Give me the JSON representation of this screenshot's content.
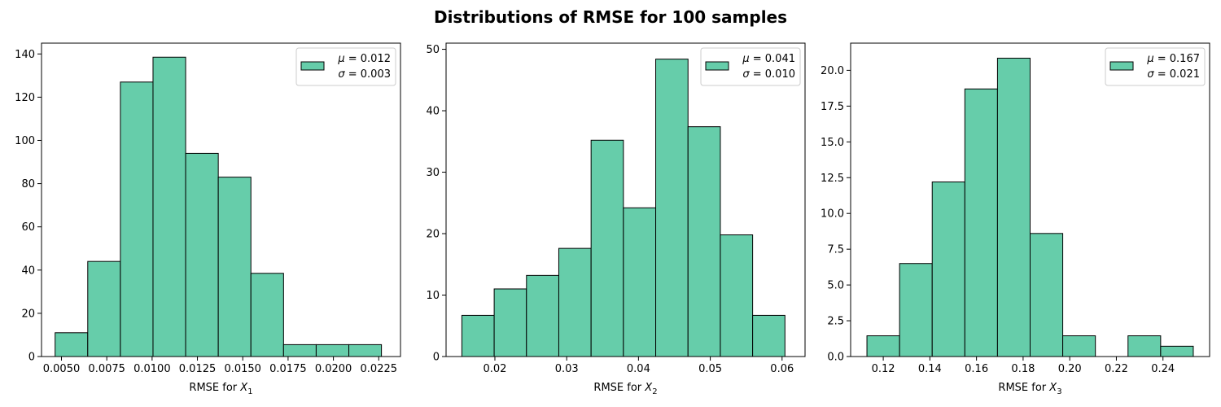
{
  "figure_title": "Distributions of RMSE for 100 samples",
  "bar_color": "#66cdaa",
  "edge_color": "#000000",
  "chart_data": [
    {
      "type": "bar",
      "xlabel": {
        "text": "RMSE for ",
        "var": "X",
        "sub": "1"
      },
      "legend": {
        "mu_label": "μ",
        "mu": "0.012",
        "sigma_label": "σ",
        "sigma": "0.003",
        "position": "top-right"
      },
      "xlim": [
        0.0039,
        0.0237
      ],
      "ylim": [
        0,
        145
      ],
      "xticks": [
        0.005,
        0.0075,
        0.01,
        0.0125,
        0.015,
        0.0175,
        0.02,
        0.0225
      ],
      "xtick_labels": [
        "0.0050",
        "0.0075",
        "0.0100",
        "0.0125",
        "0.0150",
        "0.0175",
        "0.0200",
        "0.0225"
      ],
      "yticks": [
        0,
        20,
        40,
        60,
        80,
        100,
        120,
        140
      ],
      "ytick_labels": [
        "0",
        "20",
        "40",
        "60",
        "80",
        "100",
        "120",
        "140"
      ],
      "bins": [
        [
          0.00465,
          0.00645,
          11
        ],
        [
          0.00645,
          0.00825,
          44
        ],
        [
          0.00825,
          0.01005,
          127
        ],
        [
          0.01005,
          0.01185,
          138.5
        ],
        [
          0.01185,
          0.01365,
          94
        ],
        [
          0.01365,
          0.01545,
          83
        ],
        [
          0.01545,
          0.01725,
          38.5
        ],
        [
          0.01725,
          0.01905,
          5.5
        ],
        [
          0.01905,
          0.02085,
          5.5
        ],
        [
          0.02085,
          0.02265,
          5.5
        ]
      ]
    },
    {
      "type": "bar",
      "xlabel": {
        "text": "RMSE for ",
        "var": "X",
        "sub": "2"
      },
      "legend": {
        "mu_label": "μ",
        "mu": "0.041",
        "sigma_label": "σ",
        "sigma": "0.010",
        "position": "top-right"
      },
      "xlim": [
        0.0132,
        0.0632
      ],
      "ylim": [
        0,
        51
      ],
      "xticks": [
        0.02,
        0.03,
        0.04,
        0.05,
        0.06
      ],
      "xtick_labels": [
        "0.02",
        "0.03",
        "0.04",
        "0.05",
        "0.06"
      ],
      "yticks": [
        0,
        10,
        20,
        30,
        40,
        50
      ],
      "ytick_labels": [
        "0",
        "10",
        "20",
        "30",
        "40",
        "50"
      ],
      "bins": [
        [
          0.0154,
          0.0199,
          6.7
        ],
        [
          0.0199,
          0.0244,
          11
        ],
        [
          0.0244,
          0.0289,
          13.2
        ],
        [
          0.0289,
          0.0334,
          17.6
        ],
        [
          0.0334,
          0.0379,
          35.2
        ],
        [
          0.0379,
          0.0424,
          24.2
        ],
        [
          0.0424,
          0.0469,
          48.4
        ],
        [
          0.0469,
          0.0514,
          37.4
        ],
        [
          0.0514,
          0.0559,
          19.8
        ],
        [
          0.0559,
          0.0604,
          6.7
        ]
      ]
    },
    {
      "type": "bar",
      "xlabel": {
        "text": "RMSE for ",
        "var": "X",
        "sub": "3"
      },
      "legend": {
        "mu_label": "μ",
        "mu": "0.167",
        "sigma_label": "σ",
        "sigma": "0.021",
        "position": "top-right"
      },
      "xlim": [
        0.106,
        0.26
      ],
      "ylim": [
        0,
        21.9
      ],
      "xticks": [
        0.12,
        0.14,
        0.16,
        0.18,
        0.2,
        0.22,
        0.24
      ],
      "xtick_labels": [
        "0.12",
        "0.14",
        "0.16",
        "0.18",
        "0.20",
        "0.22",
        "0.24"
      ],
      "yticks": [
        0,
        2.5,
        5,
        7.5,
        10,
        12.5,
        15,
        17.5,
        20
      ],
      "ytick_labels": [
        "0.0",
        "2.5",
        "5.0",
        "7.5",
        "10.0",
        "12.5",
        "15.0",
        "17.5",
        "20.0"
      ],
      "bins": [
        [
          0.113,
          0.127,
          1.45
        ],
        [
          0.127,
          0.141,
          6.5
        ],
        [
          0.141,
          0.155,
          12.2
        ],
        [
          0.155,
          0.169,
          18.7
        ],
        [
          0.169,
          0.183,
          20.85
        ],
        [
          0.183,
          0.197,
          8.6
        ],
        [
          0.197,
          0.211,
          1.45
        ],
        [
          0.211,
          0.225,
          0
        ],
        [
          0.225,
          0.239,
          1.45
        ],
        [
          0.239,
          0.253,
          0.72
        ]
      ]
    }
  ]
}
